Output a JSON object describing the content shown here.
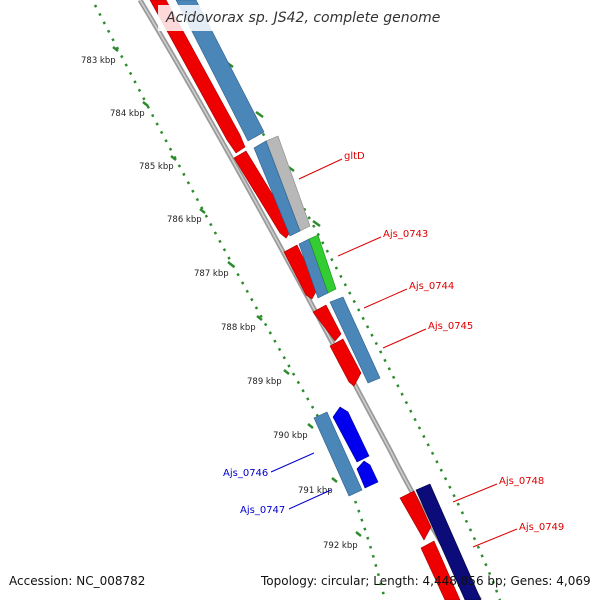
{
  "title": "Acidovorax sp. JS42, complete genome",
  "footer": {
    "accession": "Accession: NC_008782",
    "summary": "Topology: circular; Length: 4,448,856 bp; Genes: 4,069"
  },
  "colors": {
    "forward_strand": "#ee0000",
    "reverse_strand": "#0000ee",
    "gene_band": "#4a86b8",
    "dark_gene": "#0b0b7a",
    "green_feature": "#33cc33",
    "grey_feature": "#b8b8b8",
    "backbone": "#888888",
    "tick": "#2e8b2e",
    "label_red": "#dd0000",
    "label_blue": "#0000cc"
  },
  "axis_labels": [
    "783 kbp",
    "784 kbp",
    "785 kbp",
    "786 kbp",
    "787 kbp",
    "788 kbp",
    "789 kbp",
    "790 kbp",
    "791 kbp",
    "792 kbp"
  ],
  "gene_labels": [
    {
      "text": "gltD",
      "strand": "forward"
    },
    {
      "text": "Ajs_0743",
      "strand": "forward"
    },
    {
      "text": "Ajs_0744",
      "strand": "forward"
    },
    {
      "text": "Ajs_0745",
      "strand": "forward"
    },
    {
      "text": "Ajs_0748",
      "strand": "forward"
    },
    {
      "text": "Ajs_0749",
      "strand": "forward"
    },
    {
      "text": "Ajs_0746",
      "strand": "reverse"
    },
    {
      "text": "Ajs_0747",
      "strand": "reverse"
    }
  ]
}
